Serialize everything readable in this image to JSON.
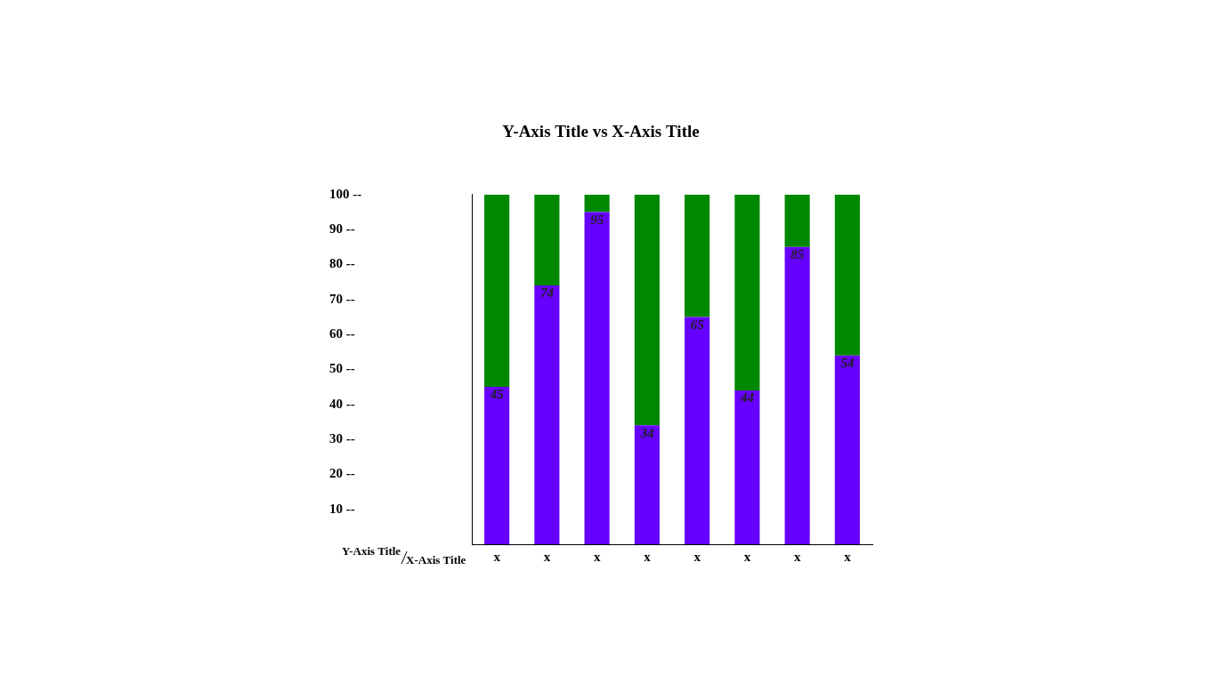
{
  "chart_data": {
    "type": "bar",
    "title": "Y-Axis Title vs X-Axis Title",
    "x_label": "X-Axis Title",
    "y_label": "Y-Axis Title",
    "categories": [
      "x",
      "x",
      "x",
      "x",
      "x",
      "x",
      "x",
      "x"
    ],
    "series": [
      {
        "color": "#6600ff",
        "values": [
          45,
          74,
          95,
          34,
          65,
          44,
          85,
          54
        ],
        "data_labels": true
      },
      {
        "color": "#008800",
        "values": [
          55,
          26,
          5,
          66,
          35,
          56,
          15,
          46
        ]
      }
    ],
    "stacked": true,
    "grid": false,
    "ylim": [
      0,
      100
    ],
    "yticks": [
      {
        "value": 10,
        "label": "10 --"
      },
      {
        "value": 20,
        "label": "20 --"
      },
      {
        "value": 30,
        "label": "30 --"
      },
      {
        "value": 40,
        "label": "40 --"
      },
      {
        "value": 50,
        "label": "50 --"
      },
      {
        "value": 60,
        "label": "60 --"
      },
      {
        "value": 70,
        "label": "70 --"
      },
      {
        "value": 80,
        "label": "80 --"
      },
      {
        "value": 90,
        "label": "90 --"
      },
      {
        "value": 100,
        "label": "100 --"
      }
    ]
  }
}
